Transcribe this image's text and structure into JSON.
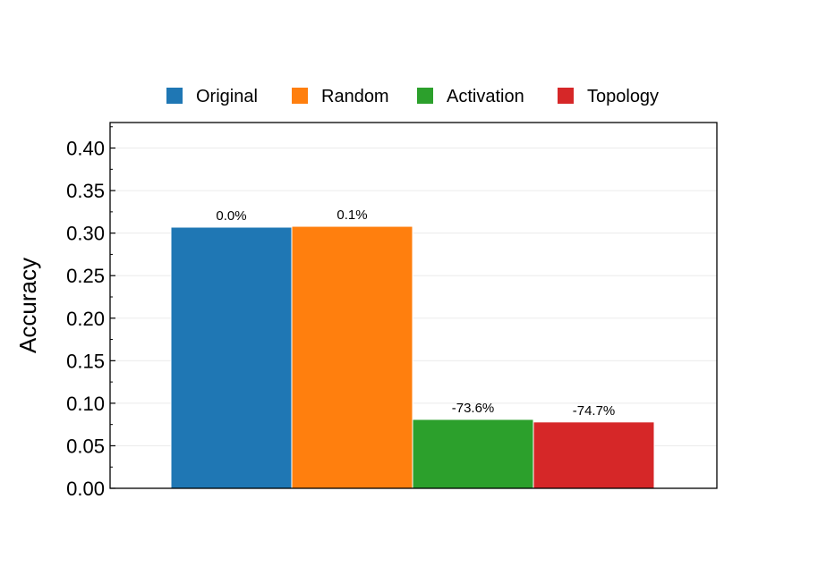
{
  "chart_data": {
    "type": "bar",
    "title": "",
    "xlabel": "",
    "ylabel": "Accuracy",
    "ylim": [
      0,
      0.43
    ],
    "yticks": [
      "0.00",
      "0.05",
      "0.10",
      "0.15",
      "0.20",
      "0.25",
      "0.30",
      "0.35",
      "0.40"
    ],
    "grid": true,
    "legend_position": "top-center",
    "series": [
      {
        "name": "Original",
        "value": 0.307,
        "label": "0.0%",
        "color": "#1f77b4"
      },
      {
        "name": "Random",
        "value": 0.308,
        "label": "0.1%",
        "color": "#ff7f0e"
      },
      {
        "name": "Activation",
        "value": 0.081,
        "label": "-73.6%",
        "color": "#2ca02c"
      },
      {
        "name": "Topology",
        "value": 0.078,
        "label": "-74.7%",
        "color": "#d62728"
      }
    ]
  }
}
